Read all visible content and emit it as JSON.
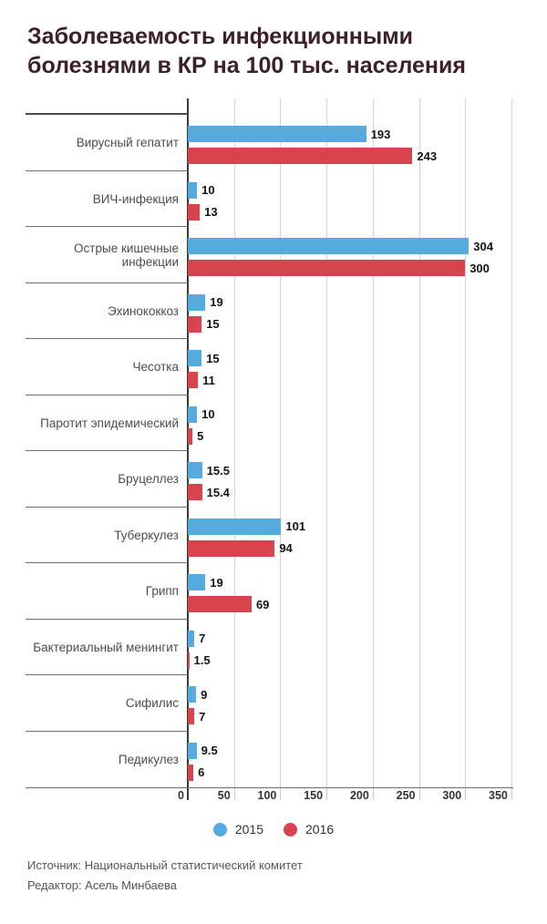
{
  "title_lines": [
    "Заболеваемость инфекционными",
    "болезнями в КР на 100 тыс. населения"
  ],
  "chart_data": {
    "type": "bar",
    "orientation": "horizontal",
    "title": "Заболеваемость инфекционными болезнями в КР на 100 тыс. населения",
    "categories": [
      "Вирусный гепатит",
      "ВИЧ-инфекция",
      "Острые кишечные инфекции",
      "Эхинококкоз",
      "Чесотка",
      "Паротит эпидемический",
      "Бруцеллез",
      "Туберкулез",
      "Грипп",
      "Бактериальный менингит",
      "Сифилис",
      "Педикулез"
    ],
    "series": [
      {
        "name": "2015",
        "color": "#55abde",
        "values": [
          193,
          10,
          304,
          19,
          15,
          10,
          15.5,
          101,
          19,
          7,
          9,
          9.5
        ]
      },
      {
        "name": "2016",
        "color": "#d8444e",
        "values": [
          243,
          13,
          300,
          15,
          11,
          5,
          15.4,
          94,
          69,
          1.5,
          7,
          6
        ]
      }
    ],
    "x_ticks": [
      0,
      50,
      100,
      150,
      200,
      250,
      300,
      350
    ],
    "xlim": [
      0,
      360
    ],
    "xlabel": "",
    "ylabel": "",
    "grid": "vertical-only",
    "legend_position": "bottom",
    "value_labels_shown": true
  },
  "footer": {
    "source": "Источник: Национальный статистический комитет",
    "editor": "Редактор: Асель Минбаева"
  },
  "colors": {
    "title": "#3e2127",
    "bar_2015": "#55abde",
    "bar_2016": "#d8444e",
    "category_label": "#4d4d4d",
    "value_label": "#141414",
    "gridline": "#d4d4d4",
    "separator": "#6f6f6f",
    "axis": "#3b3b3b",
    "footer_text": "#565656"
  }
}
